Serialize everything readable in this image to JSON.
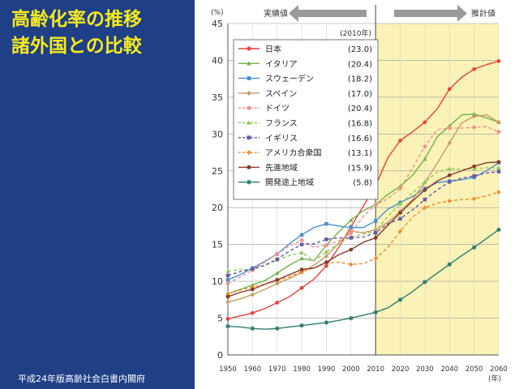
{
  "slide": {
    "title_line1": "高齢化率の推移",
    "title_line2": "諸外国との比較",
    "source": "平成24年版高齢社会白書内閣府",
    "background_color": "#1f3f87",
    "title_color": "#f5ea1e"
  },
  "chart_data": {
    "type": "line",
    "y_unit_label": "(%)",
    "x_unit_label": "(年)",
    "ylim": [
      0,
      45
    ],
    "y_ticks": [
      0,
      5,
      10,
      15,
      20,
      25,
      30,
      35,
      40,
      45
    ],
    "xlim": [
      1950,
      2060
    ],
    "x_ticks": [
      1950,
      1960,
      1970,
      1980,
      1990,
      2000,
      2010,
      2020,
      2030,
      2040,
      2050,
      2060
    ],
    "grid": true,
    "legend_position": "top-left",
    "legend_header": "(2010年)",
    "actual_label": "実績値",
    "projected_label": "推計値",
    "projection_start": 2010,
    "projection_background": "#fbf2b8",
    "x": [
      1950,
      1955,
      1960,
      1965,
      1970,
      1975,
      1980,
      1985,
      1990,
      1995,
      2000,
      2005,
      2010,
      2015,
      2020,
      2025,
      2030,
      2035,
      2040,
      2045,
      2050,
      2055,
      2060
    ],
    "series": [
      {
        "name": "日本",
        "value_2010": "(23.0)",
        "color": "#e8413a",
        "dash": "",
        "marker": "circle",
        "values": [
          4.9,
          5.3,
          5.7,
          6.3,
          7.1,
          7.9,
          9.1,
          10.3,
          12.1,
          14.6,
          17.4,
          20.2,
          23.0,
          26.8,
          29.1,
          30.3,
          31.6,
          33.4,
          36.1,
          37.7,
          38.8,
          39.4,
          39.9
        ]
      },
      {
        "name": "イタリア",
        "value_2010": "(20.4)",
        "color": "#6db544",
        "dash": "",
        "marker": "triangle",
        "values": [
          8.3,
          8.9,
          9.5,
          10.1,
          11.1,
          12.2,
          13.1,
          12.8,
          14.9,
          16.7,
          18.3,
          19.6,
          20.4,
          21.8,
          22.9,
          24.4,
          26.6,
          29.6,
          31.1,
          32.6,
          32.7,
          32.2,
          31.6
        ]
      },
      {
        "name": "スウェーデン",
        "value_2010": "(18.2)",
        "color": "#4a90d0",
        "dash": "",
        "marker": "square",
        "values": [
          10.2,
          10.9,
          11.8,
          12.7,
          13.7,
          15.1,
          16.3,
          17.3,
          17.8,
          17.5,
          17.3,
          17.3,
          18.2,
          19.8,
          20.7,
          21.5,
          22.6,
          23.4,
          23.6,
          23.8,
          24.1,
          25.0,
          26.1
        ]
      },
      {
        "name": "スペイン",
        "value_2010": "(17.0)",
        "color": "#c89a60",
        "dash": "",
        "marker": "diamond",
        "values": [
          7.2,
          7.6,
          8.2,
          8.9,
          9.7,
          10.4,
          11.2,
          12.2,
          13.4,
          15.2,
          16.8,
          16.6,
          17.0,
          18.0,
          19.5,
          21.1,
          23.4,
          26.0,
          28.8,
          31.5,
          32.4,
          32.6,
          31.6
        ]
      },
      {
        "name": "ドイツ",
        "value_2010": "(20.4)",
        "color": "#f0908a",
        "dash": "4 3",
        "marker": "circle",
        "values": [
          9.7,
          10.6,
          11.5,
          12.6,
          13.7,
          14.8,
          15.6,
          14.6,
          14.9,
          15.5,
          16.5,
          18.8,
          20.4,
          21.2,
          22.6,
          25.4,
          28.3,
          30.6,
          30.8,
          30.8,
          30.9,
          31.0,
          30.3
        ]
      },
      {
        "name": "フランス",
        "value_2010": "(16.8)",
        "color": "#8fc85a",
        "dash": "4 3",
        "marker": "triangle",
        "values": [
          11.4,
          11.6,
          11.6,
          12.1,
          12.9,
          13.5,
          13.9,
          12.8,
          14.0,
          15.1,
          16.0,
          16.4,
          16.8,
          18.8,
          20.5,
          22.0,
          23.5,
          24.8,
          25.3,
          25.2,
          25.3,
          25.4,
          25.4
        ]
      },
      {
        "name": "イギリス",
        "value_2010": "(16.6)",
        "color": "#6858a8",
        "dash": "4 3",
        "marker": "square",
        "values": [
          10.8,
          11.3,
          11.7,
          12.2,
          13.0,
          14.1,
          15.0,
          15.1,
          15.7,
          15.9,
          15.9,
          16.0,
          16.6,
          17.8,
          18.5,
          19.7,
          21.1,
          22.4,
          23.5,
          24.0,
          24.3,
          24.7,
          24.9
        ]
      },
      {
        "name": "アメリカ合衆国",
        "value_2010": "(13.1)",
        "color": "#f08c2a",
        "dash": "4 3",
        "marker": "diamond",
        "values": [
          8.3,
          8.8,
          9.2,
          9.6,
          10.1,
          10.6,
          11.3,
          11.8,
          12.5,
          12.6,
          12.3,
          12.4,
          13.1,
          14.6,
          16.8,
          18.7,
          20.0,
          20.6,
          20.9,
          21.1,
          21.2,
          21.6,
          22.1
        ]
      },
      {
        "name": "先進地域",
        "value_2010": "(15.9)",
        "color": "#8a3a2a",
        "dash": "",
        "marker": "circle",
        "values": [
          7.9,
          8.5,
          8.9,
          9.6,
          10.2,
          10.9,
          11.6,
          11.8,
          12.6,
          13.6,
          14.3,
          15.3,
          15.9,
          17.6,
          19.3,
          20.9,
          22.4,
          23.6,
          24.4,
          25.0,
          25.6,
          26.1,
          26.2
        ]
      },
      {
        "name": "開発途上地域",
        "value_2010": "(5.8)",
        "color": "#2e7d6e",
        "dash": "",
        "marker": "star",
        "values": [
          3.9,
          3.8,
          3.6,
          3.5,
          3.6,
          3.8,
          4.0,
          4.2,
          4.4,
          4.7,
          5.0,
          5.4,
          5.8,
          6.4,
          7.5,
          8.6,
          9.9,
          11.1,
          12.3,
          13.5,
          14.6,
          15.8,
          17.0
        ]
      }
    ]
  }
}
